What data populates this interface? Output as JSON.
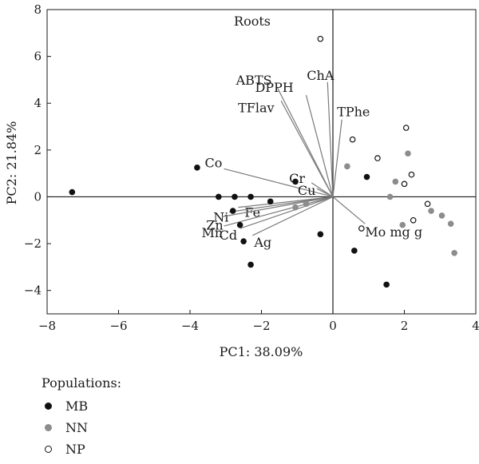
{
  "chart_data": {
    "type": "scatter",
    "title": "Roots",
    "xlabel": "PC1: 38.09%",
    "ylabel": "PC2: 21.84%",
    "xlim": [
      -8,
      4
    ],
    "ylim": [
      -5,
      8
    ],
    "xticks": [
      -8,
      -6,
      -4,
      -2,
      0,
      2,
      4
    ],
    "yticks": [
      -4,
      -2,
      0,
      2,
      4,
      6,
      8
    ],
    "xtick_labels": [
      "−8",
      "−6",
      "−4",
      "−2",
      "0",
      "2",
      "4"
    ],
    "ytick_labels": [
      "−4",
      "−2",
      "0",
      "2",
      "4",
      "6",
      "8"
    ],
    "series": [
      {
        "name": "MB",
        "color": "#111111",
        "marker": "filled",
        "points": [
          {
            "x": -7.3,
            "y": 0.2
          },
          {
            "x": -3.8,
            "y": 1.25
          },
          {
            "x": -3.2,
            "y": 0.0
          },
          {
            "x": -2.75,
            "y": 0.0
          },
          {
            "x": -2.3,
            "y": 0.0
          },
          {
            "x": -2.8,
            "y": -0.6
          },
          {
            "x": -2.6,
            "y": -1.2
          },
          {
            "x": -2.5,
            "y": -1.9
          },
          {
            "x": -2.3,
            "y": -2.9
          },
          {
            "x": -1.75,
            "y": -0.2
          },
          {
            "x": -1.05,
            "y": 0.65
          },
          {
            "x": -0.35,
            "y": -1.6
          },
          {
            "x": 0.95,
            "y": 0.85
          },
          {
            "x": 0.6,
            "y": -2.3
          },
          {
            "x": 1.5,
            "y": -3.75
          }
        ]
      },
      {
        "name": "NN",
        "color": "#8c8c8c",
        "marker": "filled",
        "points": [
          {
            "x": -1.05,
            "y": -0.45
          },
          {
            "x": -0.75,
            "y": -0.3
          },
          {
            "x": 0.4,
            "y": 1.3
          },
          {
            "x": 1.6,
            "y": 0.0
          },
          {
            "x": 1.75,
            "y": 0.65
          },
          {
            "x": 1.95,
            "y": -1.2
          },
          {
            "x": 2.1,
            "y": 1.85
          },
          {
            "x": 2.75,
            "y": -0.6
          },
          {
            "x": 3.05,
            "y": -0.8
          },
          {
            "x": 3.3,
            "y": -1.15
          },
          {
            "x": 3.4,
            "y": -2.4
          }
        ]
      },
      {
        "name": "NP",
        "color": "#111111",
        "marker": "open",
        "points": [
          {
            "x": -0.35,
            "y": 6.75
          },
          {
            "x": 0.55,
            "y": 2.45
          },
          {
            "x": 1.25,
            "y": 1.65
          },
          {
            "x": 2.05,
            "y": 2.95
          },
          {
            "x": 2.2,
            "y": 0.95
          },
          {
            "x": 2.0,
            "y": 0.55
          },
          {
            "x": 2.65,
            "y": -0.3
          },
          {
            "x": 2.25,
            "y": -1.0
          },
          {
            "x": 0.8,
            "y": -1.35
          }
        ]
      }
    ],
    "loadings": [
      {
        "name": "ChA",
        "x": -0.15,
        "y": 4.9
      },
      {
        "name": "DPPH",
        "x": -0.75,
        "y": 4.35
      },
      {
        "name": "ABTS",
        "x": -1.55,
        "y": 4.65
      },
      {
        "name": "TFlav",
        "x": -1.45,
        "y": 4.1
      },
      {
        "name": "TPhe",
        "x": 0.25,
        "y": 3.3
      },
      {
        "name": "Co",
        "x": -3.05,
        "y": 1.2
      },
      {
        "name": "Cr",
        "x": -0.6,
        "y": 0.6
      },
      {
        "name": "Cu",
        "x": -0.45,
        "y": 0.35
      },
      {
        "name": "Fe",
        "x": -2.65,
        "y": -0.45
      },
      {
        "name": "Ni",
        "x": -2.9,
        "y": -0.65
      },
      {
        "name": "Zn",
        "x": -3.1,
        "y": -0.85
      },
      {
        "name": "Mn",
        "x": -3.05,
        "y": -1.25
      },
      {
        "name": "Cd",
        "x": -2.6,
        "y": -1.35
      },
      {
        "name": "Ag",
        "x": -2.25,
        "y": -1.65
      },
      {
        "name": "Mo mg g",
        "x": 0.9,
        "y": -1.15
      }
    ],
    "legend_title": "Populations:",
    "legend_position": "bottom-left",
    "grid": false
  }
}
